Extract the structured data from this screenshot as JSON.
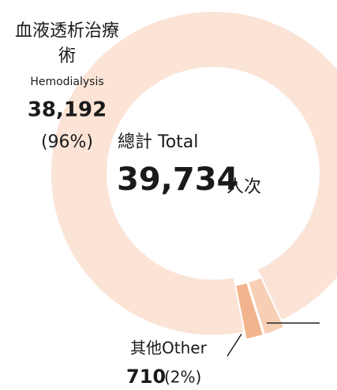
{
  "chart_data": {
    "type": "pie",
    "categories": [
      "血液透析治療術",
      "其他Other",
      null
    ],
    "category_subtitles": [
      "Hemodialysis",
      null,
      null
    ],
    "values": [
      38192,
      710,
      832
    ],
    "value_labels": [
      "38,192",
      "710",
      null
    ],
    "percents": [
      96,
      2,
      null
    ],
    "percent_labels": [
      "(96%)",
      "(2%)",
      null
    ],
    "colors": [
      "#fbe3d6",
      "#f2b48d",
      "#f7cfb5"
    ],
    "total_label": "總計 Total",
    "total": 39734,
    "total_value_label": "39,734",
    "total_unit": "人次"
  }
}
